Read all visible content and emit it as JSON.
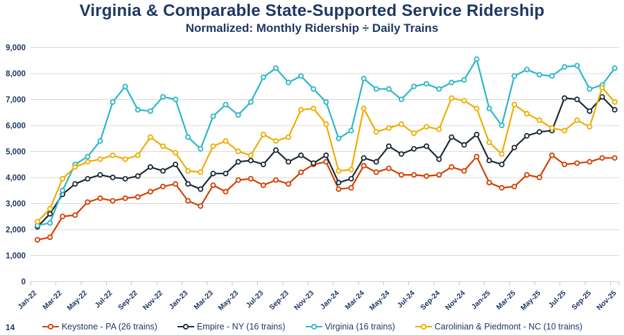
{
  "page": {
    "number": "14"
  },
  "header": {
    "title": "Virginia & Comparable State-Supported Service Ridership",
    "subtitle": "Normalized: Monthly Ridership ÷ Daily Trains"
  },
  "colors": {
    "text": "#1f3864",
    "grid": "#d9d9d9",
    "axis_line": "#d0d0d0",
    "tick": "#c2c2c2",
    "background": "#ffffff"
  },
  "chart_data": {
    "type": "line",
    "title": "Virginia & Comparable State-Supported Service Ridership",
    "subtitle": "Normalized: Monthly Ridership ÷ Daily Trains",
    "grid": "horizontal",
    "legend_position": "bottom",
    "marker": "open-circle",
    "ylim": [
      0,
      9000
    ],
    "y_tick_step": 1000,
    "y_tick_labels": [
      "0",
      "1,000",
      "2,000",
      "3,000",
      "4,000",
      "5,000",
      "6,000",
      "7,000",
      "8,000",
      "9,000"
    ],
    "x_tick_every": 2,
    "x_categories": [
      "Jan-22",
      "Feb-22",
      "Mar-22",
      "Apr-22",
      "May-22",
      "Jun-22",
      "Jul-22",
      "Aug-22",
      "Sep-22",
      "Oct-22",
      "Nov-22",
      "Dec-22",
      "Jan-23",
      "Feb-23",
      "Mar-23",
      "Apr-23",
      "May-23",
      "Jun-23",
      "Jul-23",
      "Aug-23",
      "Sep-23",
      "Oct-23",
      "Nov-23",
      "Dec-23",
      "Jan-24",
      "Feb-24",
      "Mar-24",
      "Apr-24",
      "May-24",
      "Jun-24",
      "Jul-24",
      "Aug-24",
      "Sep-24",
      "Oct-24",
      "Nov-24",
      "Dec-24",
      "Jan-25",
      "Feb-25",
      "Mar-25",
      "Apr-25",
      "May-25",
      "Jun-25",
      "Jul-25",
      "Aug-25",
      "Sep-25",
      "Oct-25",
      "Nov-25"
    ],
    "series": [
      {
        "name": "Keystone - PA (26 trains)",
        "color": "#d24000",
        "values": [
          1600,
          1700,
          2500,
          2550,
          3050,
          3200,
          3100,
          3200,
          3250,
          3450,
          3650,
          3750,
          3100,
          2900,
          3700,
          3450,
          3900,
          3950,
          3700,
          3900,
          3750,
          4200,
          4500,
          4600,
          3550,
          3600,
          4450,
          4200,
          4350,
          4100,
          4100,
          4050,
          4100,
          4400,
          4250,
          4800,
          3800,
          3600,
          3650,
          4100,
          4000,
          4850,
          4500,
          4550,
          4600,
          4750,
          4750
        ]
      },
      {
        "name": "Empire - NY (16 trains)",
        "color": "#1b2a38",
        "values": [
          2100,
          2600,
          3350,
          3750,
          3950,
          4100,
          4000,
          3950,
          4050,
          4400,
          4250,
          4500,
          3750,
          3550,
          4150,
          4150,
          4600,
          4650,
          4500,
          5050,
          4600,
          4850,
          4550,
          4850,
          3800,
          3950,
          4750,
          4600,
          5200,
          4900,
          5100,
          5200,
          4700,
          5550,
          5250,
          5650,
          4650,
          4500,
          5150,
          5600,
          5750,
          5800,
          7050,
          7000,
          6550,
          7100,
          6600
        ]
      },
      {
        "name": "Virginia (16 trains)",
        "color": "#2bb7c6",
        "values": [
          2150,
          2250,
          3500,
          4500,
          4800,
          5400,
          6900,
          7500,
          6600,
          6550,
          7100,
          7000,
          5550,
          5100,
          6350,
          6800,
          6400,
          6900,
          7850,
          8200,
          7650,
          7900,
          7400,
          6900,
          5500,
          5800,
          7800,
          7400,
          7400,
          7000,
          7500,
          7600,
          7400,
          7650,
          7750,
          8550,
          6650,
          6000,
          7900,
          8150,
          7950,
          7900,
          8250,
          8300,
          7400,
          7550,
          8200
        ]
      },
      {
        "name": "Carolinian & Piedmont - NC (10 trains)",
        "color": "#efac00",
        "values": [
          2300,
          2800,
          3950,
          4400,
          4600,
          4700,
          4850,
          4700,
          4850,
          5550,
          5200,
          4950,
          4250,
          4200,
          5200,
          5400,
          5000,
          4850,
          5650,
          5400,
          5550,
          6600,
          6650,
          6050,
          4250,
          4300,
          6650,
          5750,
          5900,
          6050,
          5700,
          5950,
          5850,
          7050,
          6950,
          6650,
          5350,
          4900,
          6800,
          6450,
          6200,
          5900,
          5800,
          6200,
          5950,
          7450,
          6900
        ]
      }
    ]
  }
}
